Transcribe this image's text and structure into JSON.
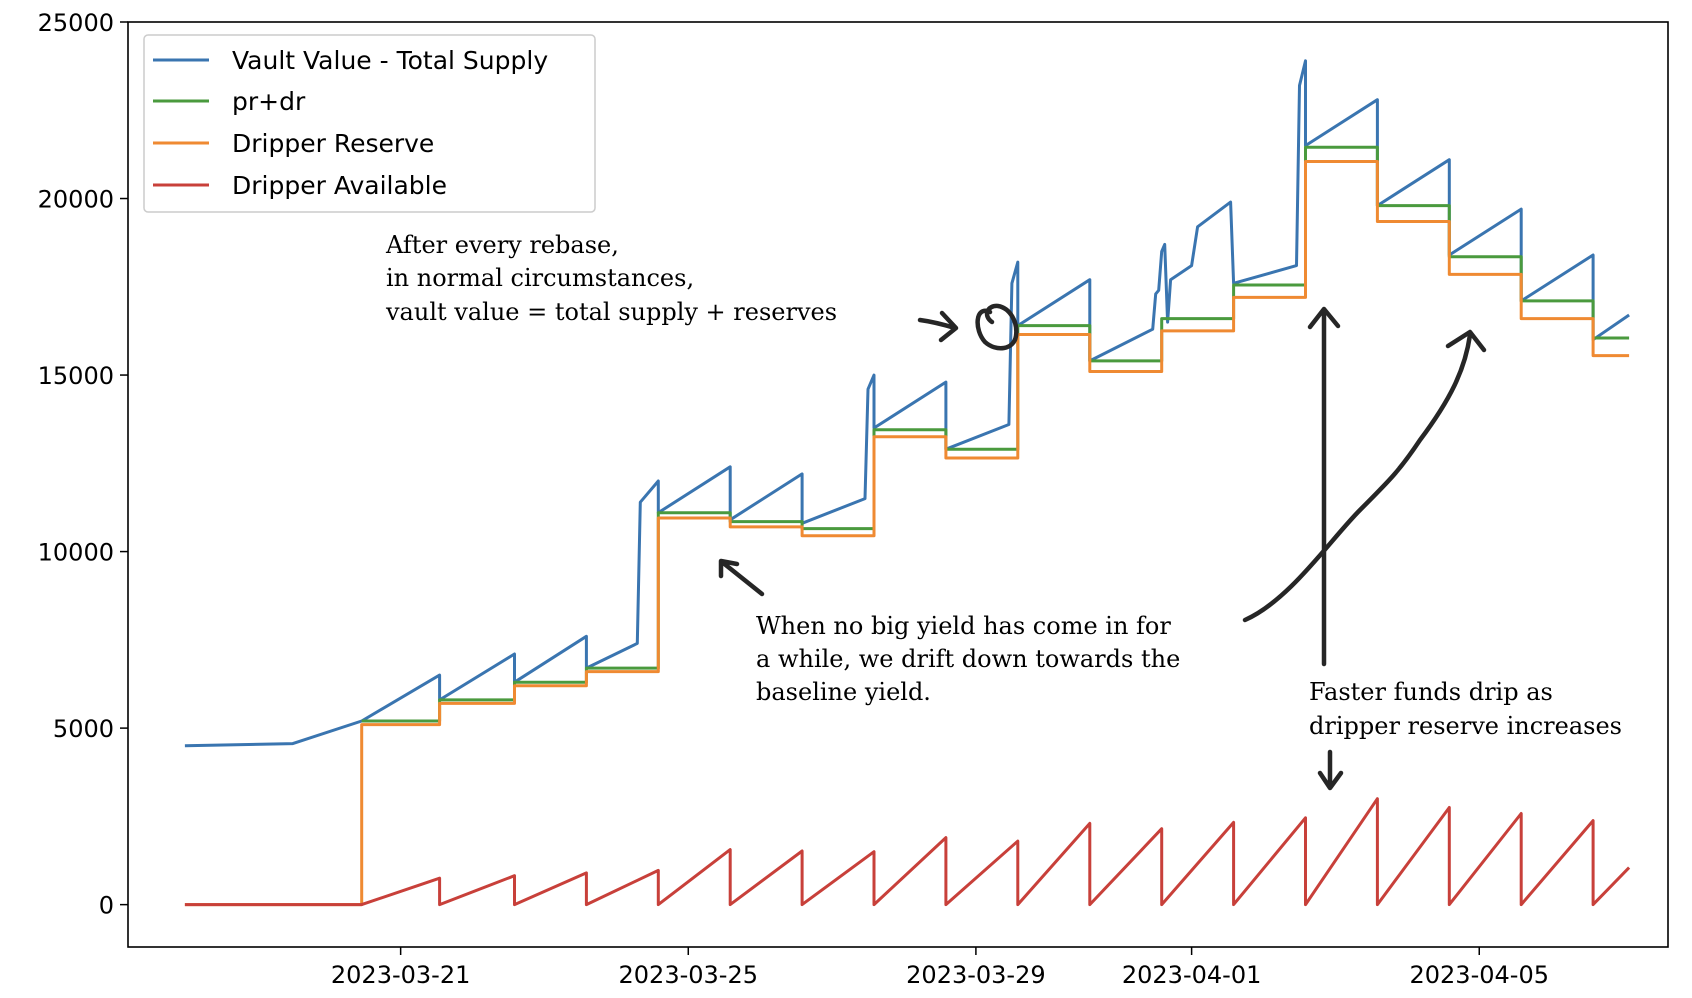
{
  "chart_data": {
    "type": "line",
    "title": "",
    "xlabel": "",
    "ylabel": "",
    "ylim": [
      -1200,
      25000
    ],
    "xlim": [
      "2023-03-17T05:00",
      "2023-04-07T15:00"
    ],
    "y_ticks": [
      0,
      5000,
      10000,
      15000,
      20000,
      25000
    ],
    "y_tick_labels": [
      "0",
      "5000",
      "10000",
      "15000",
      "20000",
      "25000"
    ],
    "x_ticks": [
      "2023-03-21",
      "2023-03-25",
      "2023-03-29",
      "2023-04-01",
      "2023-04-05"
    ],
    "grid": false,
    "legend_position": "upper-left",
    "series": [
      {
        "name": "Vault Value - Total Supply",
        "color": "#3a75b0",
        "points": [
          [
            "2023-03-18T00:00",
            4500
          ],
          [
            "2023-03-19T12:00",
            4560
          ],
          [
            "2023-03-20T11:00",
            5200
          ],
          [
            "2023-03-21T13:00",
            6500
          ],
          [
            "2023-03-21T13:00",
            5800
          ],
          [
            "2023-03-22T14:00",
            7100
          ],
          [
            "2023-03-22T14:00",
            6300
          ],
          [
            "2023-03-23T14:00",
            7600
          ],
          [
            "2023-03-23T14:00",
            6700
          ],
          [
            "2023-03-24T07:00",
            7400
          ],
          [
            "2023-03-24T08:00",
            11400
          ],
          [
            "2023-03-24T14:00",
            12000
          ],
          [
            "2023-03-24T14:00",
            11100
          ],
          [
            "2023-03-25T14:00",
            12400
          ],
          [
            "2023-03-25T14:00",
            10900
          ],
          [
            "2023-03-26T14:00",
            12200
          ],
          [
            "2023-03-26T14:00",
            10800
          ],
          [
            "2023-03-27T11:00",
            11500
          ],
          [
            "2023-03-27T12:00",
            14600
          ],
          [
            "2023-03-27T14:00",
            15000
          ],
          [
            "2023-03-27T14:00",
            13500
          ],
          [
            "2023-03-28T14:00",
            14800
          ],
          [
            "2023-03-28T14:00",
            12900
          ],
          [
            "2023-03-29T11:00",
            13600
          ],
          [
            "2023-03-29T12:00",
            17600
          ],
          [
            "2023-03-29T14:00",
            18200
          ],
          [
            "2023-03-29T14:00",
            16400
          ],
          [
            "2023-03-30T14:00",
            17700
          ],
          [
            "2023-03-30T14:00",
            15400
          ],
          [
            "2023-03-31T11:00",
            16300
          ],
          [
            "2023-03-31T12:00",
            17300
          ],
          [
            "2023-03-31T13:00",
            17400
          ],
          [
            "2023-03-31T14:00",
            18500
          ],
          [
            "2023-03-31T15:00",
            18700
          ],
          [
            "2023-03-31T16:00",
            16500
          ],
          [
            "2023-03-31T17:00",
            17700
          ],
          [
            "2023-04-01T00:00",
            18100
          ],
          [
            "2023-04-01T02:00",
            19200
          ],
          [
            "2023-04-01T13:00",
            19900
          ],
          [
            "2023-04-01T14:00",
            17600
          ],
          [
            "2023-04-02T11:00",
            18100
          ],
          [
            "2023-04-02T12:00",
            23200
          ],
          [
            "2023-04-02T14:00",
            23900
          ],
          [
            "2023-04-02T14:00",
            21500
          ],
          [
            "2023-04-03T14:00",
            22800
          ],
          [
            "2023-04-03T14:00",
            19800
          ],
          [
            "2023-04-04T14:00",
            21100
          ],
          [
            "2023-04-04T14:00",
            18400
          ],
          [
            "2023-04-05T14:00",
            19700
          ],
          [
            "2023-04-05T14:00",
            17100
          ],
          [
            "2023-04-06T14:00",
            18400
          ],
          [
            "2023-04-06T14:00",
            16000
          ],
          [
            "2023-04-07T02:00",
            16700
          ]
        ]
      },
      {
        "name": "pr+dr",
        "color": "#4a9a3e",
        "points": [
          [
            "2023-03-20T11:00",
            5200
          ],
          [
            "2023-03-21T13:00",
            5200
          ],
          [
            "2023-03-21T13:00",
            5800
          ],
          [
            "2023-03-22T14:00",
            5800
          ],
          [
            "2023-03-22T14:00",
            6300
          ],
          [
            "2023-03-23T14:00",
            6300
          ],
          [
            "2023-03-23T14:00",
            6700
          ],
          [
            "2023-03-24T14:00",
            6700
          ],
          [
            "2023-03-24T14:00",
            11100
          ],
          [
            "2023-03-25T14:00",
            11100
          ],
          [
            "2023-03-25T14:00",
            10850
          ],
          [
            "2023-03-26T14:00",
            10850
          ],
          [
            "2023-03-26T14:00",
            10650
          ],
          [
            "2023-03-27T14:00",
            10650
          ],
          [
            "2023-03-27T14:00",
            13450
          ],
          [
            "2023-03-28T14:00",
            13450
          ],
          [
            "2023-03-28T14:00",
            12900
          ],
          [
            "2023-03-29T14:00",
            12900
          ],
          [
            "2023-03-29T14:00",
            16400
          ],
          [
            "2023-03-30T14:00",
            16400
          ],
          [
            "2023-03-30T14:00",
            15400
          ],
          [
            "2023-03-31T14:00",
            15400
          ],
          [
            "2023-03-31T14:00",
            16600
          ],
          [
            "2023-04-01T14:00",
            16600
          ],
          [
            "2023-04-01T14:00",
            17550
          ],
          [
            "2023-04-02T14:00",
            17550
          ],
          [
            "2023-04-02T14:00",
            21450
          ],
          [
            "2023-04-03T14:00",
            21450
          ],
          [
            "2023-04-03T14:00",
            19800
          ],
          [
            "2023-04-04T14:00",
            19800
          ],
          [
            "2023-04-04T14:00",
            18350
          ],
          [
            "2023-04-05T14:00",
            18350
          ],
          [
            "2023-04-05T14:00",
            17100
          ],
          [
            "2023-04-06T14:00",
            17100
          ],
          [
            "2023-04-06T14:00",
            16050
          ],
          [
            "2023-04-07T02:00",
            16050
          ]
        ]
      },
      {
        "name": "Dripper Reserve",
        "color": "#ef8a32",
        "points": [
          [
            "2023-03-18T00:00",
            0
          ],
          [
            "2023-03-20T11:00",
            0
          ],
          [
            "2023-03-20T11:00",
            5100
          ],
          [
            "2023-03-21T13:00",
            5100
          ],
          [
            "2023-03-21T13:00",
            5700
          ],
          [
            "2023-03-22T14:00",
            5700
          ],
          [
            "2023-03-22T14:00",
            6200
          ],
          [
            "2023-03-23T14:00",
            6200
          ],
          [
            "2023-03-23T14:00",
            6600
          ],
          [
            "2023-03-24T14:00",
            6600
          ],
          [
            "2023-03-24T14:00",
            10950
          ],
          [
            "2023-03-25T14:00",
            10950
          ],
          [
            "2023-03-25T14:00",
            10700
          ],
          [
            "2023-03-26T14:00",
            10700
          ],
          [
            "2023-03-26T14:00",
            10450
          ],
          [
            "2023-03-27T14:00",
            10450
          ],
          [
            "2023-03-27T14:00",
            13250
          ],
          [
            "2023-03-28T14:00",
            13250
          ],
          [
            "2023-03-28T14:00",
            12650
          ],
          [
            "2023-03-29T14:00",
            12650
          ],
          [
            "2023-03-29T14:00",
            16150
          ],
          [
            "2023-03-30T14:00",
            16150
          ],
          [
            "2023-03-30T14:00",
            15100
          ],
          [
            "2023-03-31T14:00",
            15100
          ],
          [
            "2023-03-31T14:00",
            16250
          ],
          [
            "2023-04-01T14:00",
            16250
          ],
          [
            "2023-04-01T14:00",
            17200
          ],
          [
            "2023-04-02T14:00",
            17200
          ],
          [
            "2023-04-02T14:00",
            21050
          ],
          [
            "2023-04-03T14:00",
            21050
          ],
          [
            "2023-04-03T14:00",
            19350
          ],
          [
            "2023-04-04T14:00",
            19350
          ],
          [
            "2023-04-04T14:00",
            17850
          ],
          [
            "2023-04-05T14:00",
            17850
          ],
          [
            "2023-04-05T14:00",
            16600
          ],
          [
            "2023-04-06T14:00",
            16600
          ],
          [
            "2023-04-06T14:00",
            15550
          ],
          [
            "2023-04-07T02:00",
            15550
          ]
        ]
      },
      {
        "name": "Dripper Available",
        "color": "#c8403a",
        "points": [
          [
            "2023-03-18T00:00",
            0
          ],
          [
            "2023-03-20T11:00",
            0
          ],
          [
            "2023-03-21T13:00",
            750
          ],
          [
            "2023-03-21T13:00",
            0
          ],
          [
            "2023-03-22T14:00",
            820
          ],
          [
            "2023-03-22T14:00",
            0
          ],
          [
            "2023-03-23T14:00",
            900
          ],
          [
            "2023-03-23T14:00",
            0
          ],
          [
            "2023-03-24T14:00",
            970
          ],
          [
            "2023-03-24T14:00",
            0
          ],
          [
            "2023-03-25T14:00",
            1560
          ],
          [
            "2023-03-25T14:00",
            0
          ],
          [
            "2023-03-26T14:00",
            1520
          ],
          [
            "2023-03-26T14:00",
            0
          ],
          [
            "2023-03-27T14:00",
            1500
          ],
          [
            "2023-03-27T14:00",
            0
          ],
          [
            "2023-03-28T14:00",
            1900
          ],
          [
            "2023-03-28T14:00",
            0
          ],
          [
            "2023-03-29T14:00",
            1800
          ],
          [
            "2023-03-29T14:00",
            0
          ],
          [
            "2023-03-30T14:00",
            2300
          ],
          [
            "2023-03-30T14:00",
            0
          ],
          [
            "2023-03-31T14:00",
            2150
          ],
          [
            "2023-03-31T14:00",
            0
          ],
          [
            "2023-04-01T14:00",
            2330
          ],
          [
            "2023-04-01T14:00",
            0
          ],
          [
            "2023-04-02T14:00",
            2460
          ],
          [
            "2023-04-02T14:00",
            0
          ],
          [
            "2023-04-03T14:00",
            3000
          ],
          [
            "2023-04-03T14:00",
            0
          ],
          [
            "2023-04-04T14:00",
            2750
          ],
          [
            "2023-04-04T14:00",
            0
          ],
          [
            "2023-04-05T14:00",
            2580
          ],
          [
            "2023-04-05T14:00",
            0
          ],
          [
            "2023-04-06T14:00",
            2380
          ],
          [
            "2023-04-06T14:00",
            0
          ],
          [
            "2023-04-07T02:00",
            1050
          ]
        ]
      }
    ],
    "annotations": [
      {
        "id": "rebase",
        "lines": [
          "After every rebase,",
          "in normal circumstances,",
          "vault value = total supply + reserves"
        ]
      },
      {
        "id": "drift",
        "lines": [
          "When no big yield has come in for",
          "a while, we drift down towards the",
          "baseline yield."
        ]
      },
      {
        "id": "drip",
        "lines": [
          "Faster funds drip as",
          "dripper reserve increases"
        ]
      }
    ]
  }
}
